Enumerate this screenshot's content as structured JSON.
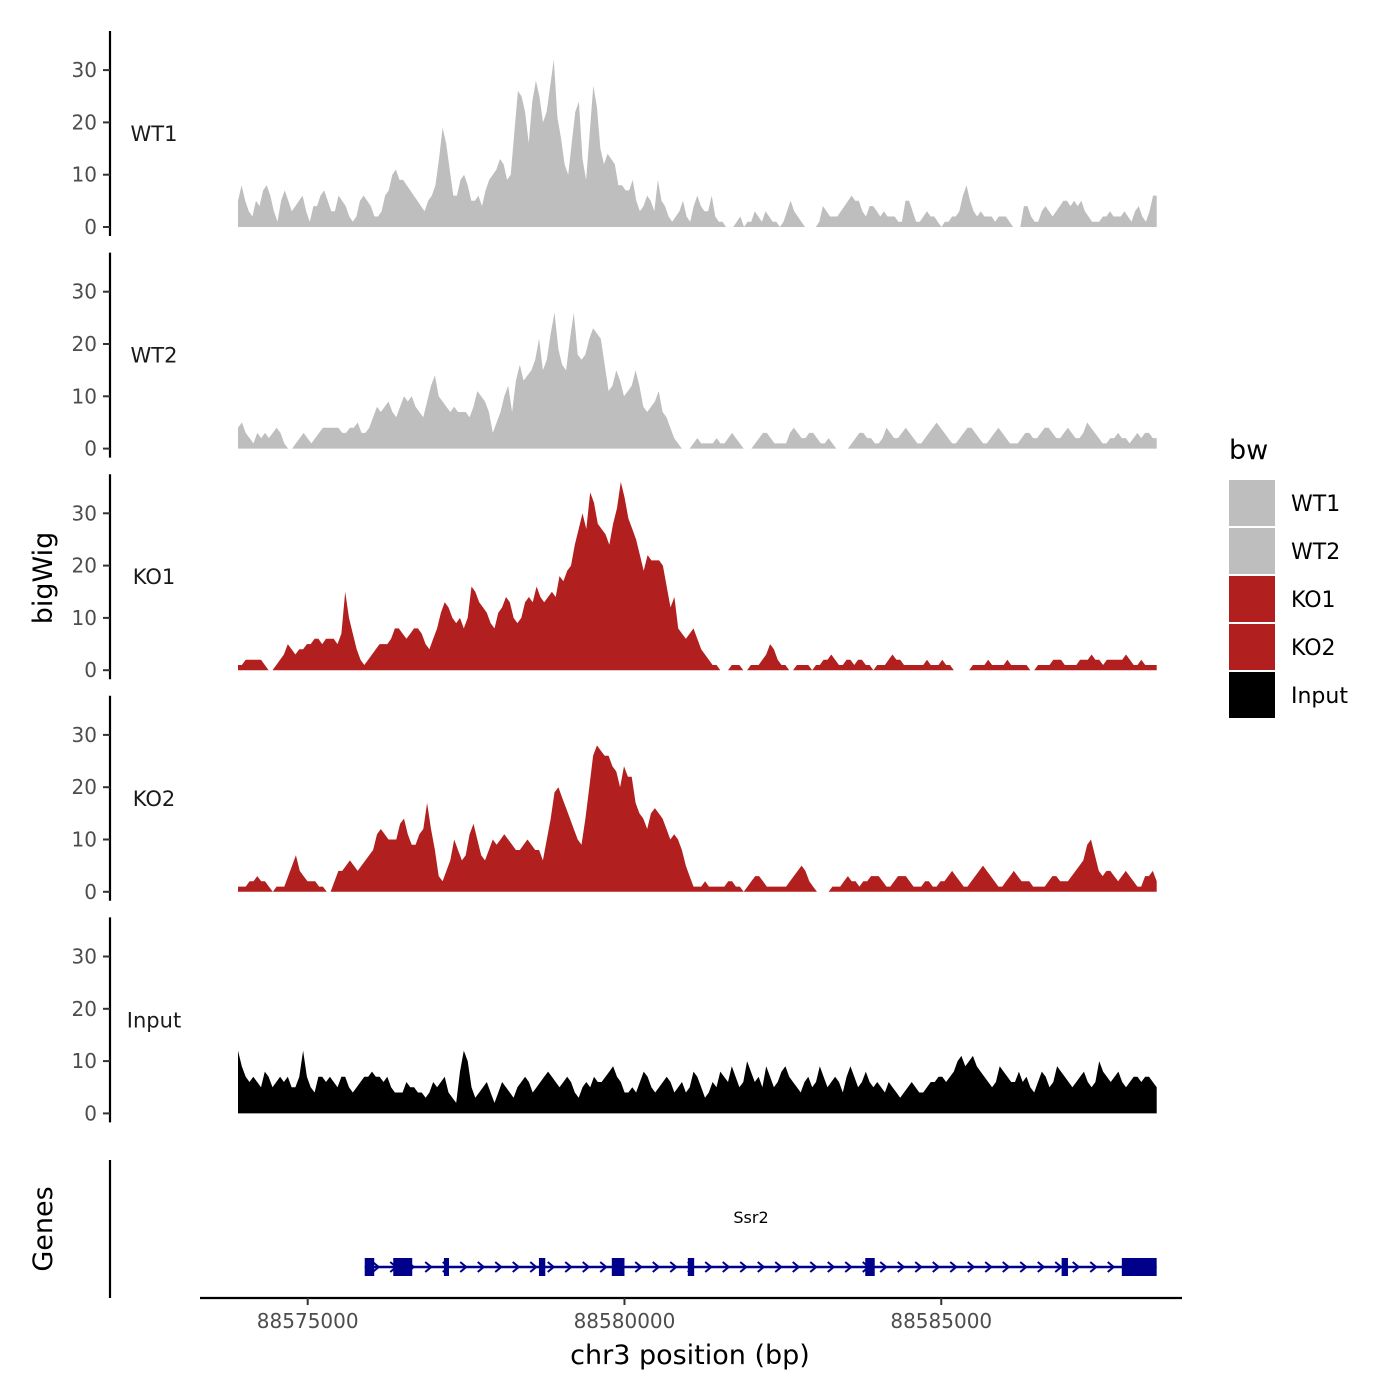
{
  "chart_data": {
    "type": "area",
    "ylabel": "bigWig",
    "xlabel": "chr3 position (bp)",
    "xlim": [
      88573300,
      88588800
    ],
    "ylim": [
      0,
      38
    ],
    "data_x_range": [
      88573900,
      88588400
    ],
    "yticks": [
      0,
      10,
      20,
      30
    ],
    "xticks": [
      {
        "value": 88575000,
        "label": "88575000"
      },
      {
        "value": 88580000,
        "label": "88580000"
      },
      {
        "value": 88585000,
        "label": "88585000"
      }
    ],
    "colors": {
      "WT": "#bebebe",
      "KO": "#b21f1f",
      "Input": "#000000",
      "gene": "#00008b"
    },
    "series": [
      {
        "name": "WT1",
        "color": "#bebebe",
        "values": [
          5,
          8,
          5,
          3,
          2,
          5,
          4,
          7,
          8,
          6,
          3,
          1,
          5,
          7,
          5,
          3,
          4,
          5,
          6,
          3,
          1,
          4,
          4,
          6,
          7,
          5,
          3,
          3,
          6,
          5,
          4,
          2,
          1,
          2,
          5,
          6,
          5,
          4,
          2,
          2,
          3,
          6,
          7,
          10,
          11,
          9,
          9,
          8,
          7,
          6,
          5,
          4,
          3,
          5,
          6,
          8,
          13,
          19,
          16,
          11,
          6,
          6,
          9,
          10,
          8,
          5,
          5,
          6,
          4,
          7,
          9,
          10,
          11,
          13,
          12,
          9,
          10,
          18,
          26,
          25,
          22,
          16,
          24,
          28,
          25,
          20,
          22,
          27,
          32,
          21,
          17,
          12,
          10,
          16,
          22,
          24,
          13,
          9,
          18,
          27,
          23,
          15,
          12,
          14,
          13,
          12,
          8,
          8,
          7,
          7,
          9,
          5,
          3,
          4,
          6,
          5,
          3,
          9,
          5,
          4,
          2,
          1,
          2,
          3,
          5,
          2,
          1,
          4,
          6,
          4,
          3,
          3,
          6,
          2,
          1,
          1,
          0,
          0,
          0,
          1,
          2,
          0,
          1,
          1,
          3,
          2,
          1,
          3,
          2,
          1,
          1,
          0,
          1,
          3,
          5,
          3,
          2,
          1,
          0,
          0,
          0,
          0,
          1,
          4,
          3,
          2,
          2,
          2,
          3,
          4,
          5,
          6,
          5,
          5,
          3,
          2,
          4,
          4,
          3,
          2,
          3,
          2,
          2,
          2,
          1,
          1,
          5,
          5,
          3,
          1,
          1,
          2,
          3,
          2,
          2,
          1,
          0,
          1,
          1,
          2,
          2,
          3,
          6,
          8,
          5,
          3,
          2,
          3,
          2,
          2,
          2,
          1,
          2,
          2,
          2,
          1,
          0,
          0,
          0,
          4,
          4,
          2,
          1,
          1,
          3,
          4,
          3,
          2,
          3,
          4,
          5,
          5,
          4,
          5,
          4,
          5,
          3,
          2,
          1,
          1,
          1,
          2,
          2,
          3,
          2,
          2,
          2,
          3,
          2,
          1,
          3,
          4,
          2,
          1,
          3,
          6,
          6
        ]
      },
      {
        "name": "WT2",
        "color": "#bebebe",
        "values": [
          4,
          5,
          3,
          2,
          1,
          3,
          2,
          3,
          2,
          3,
          4,
          3,
          1,
          0,
          0,
          1,
          2,
          3,
          2,
          1,
          2,
          3,
          4,
          4,
          4,
          4,
          4,
          3,
          3,
          4,
          4,
          5,
          3,
          3,
          4,
          6,
          8,
          7,
          8,
          9,
          7,
          6,
          8,
          10,
          9,
          10,
          8,
          7,
          6,
          9,
          12,
          14,
          10,
          9,
          8,
          7,
          8,
          7,
          7,
          7,
          6,
          8,
          11,
          10,
          9,
          7,
          3,
          5,
          7,
          10,
          12,
          7,
          13,
          16,
          13,
          14,
          15,
          17,
          21,
          15,
          17,
          22,
          26,
          19,
          16,
          15,
          21,
          26,
          18,
          17,
          18,
          21,
          23,
          22,
          21,
          16,
          11,
          12,
          15,
          13,
          10,
          11,
          12,
          15,
          12,
          8,
          7,
          8,
          9,
          11,
          7,
          6,
          4,
          2,
          1,
          0,
          0,
          0,
          1,
          2,
          1,
          1,
          1,
          1,
          2,
          1,
          1,
          2,
          3,
          2,
          1,
          0,
          0,
          0,
          1,
          2,
          3,
          3,
          2,
          1,
          1,
          1,
          1,
          3,
          4,
          3,
          2,
          2,
          3,
          3,
          2,
          1,
          1,
          2,
          1,
          0,
          0,
          0,
          0,
          1,
          2,
          3,
          3,
          2,
          2,
          1,
          1,
          2,
          4,
          3,
          2,
          2,
          3,
          4,
          3,
          2,
          1,
          1,
          2,
          3,
          4,
          5,
          4,
          3,
          2,
          1,
          1,
          2,
          3,
          4,
          4,
          3,
          2,
          1,
          1,
          2,
          3,
          4,
          3,
          2,
          1,
          1,
          1,
          2,
          3,
          3,
          2,
          2,
          3,
          4,
          4,
          3,
          2,
          2,
          3,
          4,
          3,
          2,
          2,
          3,
          5,
          4,
          3,
          2,
          1,
          1,
          2,
          2,
          3,
          2,
          2,
          1,
          2,
          3,
          2,
          3,
          3,
          2,
          2
        ]
      },
      {
        "name": "KO1",
        "color": "#b21f1f",
        "values": [
          1,
          1,
          2,
          2,
          2,
          2,
          2,
          1,
          0,
          0,
          1,
          2,
          3,
          5,
          4,
          3,
          4,
          4,
          5,
          5,
          6,
          6,
          5,
          6,
          6,
          6,
          5,
          7,
          15,
          10,
          7,
          4,
          2,
          1,
          2,
          3,
          4,
          5,
          5,
          5,
          6,
          8,
          8,
          7,
          6,
          7,
          8,
          8,
          7,
          5,
          4,
          6,
          8,
          11,
          13,
          12,
          10,
          9,
          10,
          8,
          10,
          16,
          15,
          13,
          12,
          11,
          9,
          8,
          11,
          12,
          14,
          13,
          10,
          9,
          10,
          13,
          14,
          13,
          16,
          14,
          13,
          14,
          15,
          14,
          18,
          17,
          19,
          20,
          24,
          27,
          30,
          27,
          34,
          32,
          28,
          27,
          26,
          24,
          28,
          31,
          36,
          33,
          29,
          27,
          25,
          22,
          19,
          22,
          21,
          21,
          21,
          20,
          16,
          12,
          14,
          8,
          7,
          6,
          7,
          8,
          6,
          4,
          3,
          2,
          1,
          1,
          0,
          0,
          0,
          1,
          1,
          1,
          0,
          0,
          1,
          1,
          1,
          2,
          3,
          5,
          4,
          2,
          1,
          1,
          0,
          0,
          1,
          1,
          1,
          1,
          0,
          1,
          1,
          2,
          2,
          3,
          2,
          1,
          1,
          2,
          2,
          1,
          2,
          2,
          1,
          1,
          0,
          1,
          1,
          1,
          2,
          3,
          2,
          2,
          1,
          1,
          1,
          1,
          1,
          1,
          2,
          1,
          1,
          1,
          2,
          1,
          1,
          0,
          0,
          0,
          0,
          0,
          1,
          1,
          1,
          1,
          2,
          1,
          1,
          1,
          1,
          2,
          1,
          1,
          1,
          1,
          1,
          0,
          0,
          1,
          1,
          1,
          1,
          2,
          2,
          2,
          1,
          1,
          1,
          1,
          2,
          2,
          2,
          3,
          2,
          2,
          1,
          2,
          2,
          2,
          2,
          2,
          3,
          2,
          1,
          1,
          2,
          1,
          1,
          1,
          1
        ]
      },
      {
        "name": "KO2",
        "color": "#b21f1f",
        "values": [
          1,
          1,
          1,
          2,
          2,
          3,
          2,
          2,
          1,
          0,
          1,
          1,
          1,
          3,
          5,
          7,
          4,
          3,
          2,
          2,
          2,
          1,
          1,
          0,
          0,
          2,
          4,
          4,
          5,
          6,
          5,
          4,
          5,
          6,
          7,
          8,
          11,
          12,
          11,
          10,
          10,
          10,
          13,
          14,
          11,
          9,
          9,
          11,
          12,
          17,
          12,
          8,
          3,
          2,
          4,
          6,
          10,
          8,
          6,
          7,
          11,
          13,
          10,
          7,
          6,
          8,
          10,
          9,
          10,
          11,
          10,
          9,
          8,
          8,
          9,
          10,
          9,
          8,
          8,
          6,
          10,
          14,
          19,
          20,
          18,
          16,
          14,
          12,
          10,
          9,
          14,
          20,
          26,
          28,
          27,
          26,
          26,
          24,
          23,
          20,
          24,
          22,
          22,
          17,
          15,
          14,
          12,
          15,
          16,
          15,
          14,
          12,
          10,
          11,
          10,
          8,
          5,
          3,
          1,
          1,
          1,
          2,
          1,
          1,
          1,
          1,
          1,
          2,
          2,
          1,
          1,
          0,
          1,
          2,
          3,
          3,
          2,
          1,
          1,
          1,
          1,
          1,
          1,
          2,
          3,
          4,
          5,
          4,
          2,
          1,
          0,
          0,
          0,
          0,
          1,
          1,
          1,
          2,
          3,
          2,
          2,
          1,
          2,
          2,
          3,
          3,
          3,
          2,
          1,
          1,
          2,
          3,
          3,
          3,
          2,
          1,
          1,
          1,
          2,
          2,
          1,
          1,
          2,
          2,
          3,
          4,
          3,
          2,
          1,
          1,
          2,
          3,
          4,
          5,
          4,
          3,
          2,
          1,
          1,
          2,
          3,
          4,
          3,
          2,
          2,
          2,
          1,
          1,
          1,
          1,
          2,
          3,
          3,
          2,
          2,
          2,
          3,
          4,
          5,
          6,
          9,
          10,
          7,
          4,
          3,
          4,
          4,
          3,
          2,
          3,
          4,
          3,
          2,
          1,
          1,
          3,
          3,
          4,
          2
        ]
      },
      {
        "name": "Input",
        "color": "#000000",
        "values": [
          12,
          9,
          7,
          6,
          7,
          6,
          5,
          8,
          7,
          5,
          6,
          7,
          6,
          7,
          5,
          5,
          7,
          12,
          7,
          5,
          4,
          7,
          7,
          6,
          7,
          6,
          5,
          7,
          7,
          5,
          4,
          5,
          6,
          7,
          7,
          8,
          7,
          7,
          6,
          7,
          5,
          4,
          4,
          4,
          6,
          5,
          5,
          4,
          4,
          3,
          4,
          6,
          5,
          6,
          7,
          4,
          3,
          2,
          8,
          12,
          10,
          5,
          3,
          4,
          5,
          6,
          4,
          2,
          4,
          6,
          5,
          4,
          3,
          5,
          6,
          7,
          6,
          4,
          5,
          6,
          7,
          8,
          7,
          6,
          5,
          6,
          7,
          6,
          4,
          3,
          5,
          6,
          5,
          7,
          6,
          6,
          7,
          8,
          9,
          7,
          6,
          4,
          4,
          5,
          4,
          6,
          8,
          7,
          5,
          4,
          5,
          6,
          7,
          6,
          4,
          5,
          6,
          4,
          5,
          8,
          7,
          5,
          3,
          4,
          6,
          5,
          8,
          7,
          6,
          9,
          7,
          5,
          6,
          10,
          8,
          6,
          7,
          5,
          9,
          7,
          5,
          6,
          8,
          9,
          7,
          6,
          5,
          4,
          6,
          7,
          5,
          6,
          9,
          7,
          5,
          6,
          7,
          6,
          4,
          7,
          9,
          7,
          5,
          6,
          8,
          6,
          5,
          6,
          5,
          4,
          6,
          5,
          4,
          3,
          4,
          5,
          6,
          5,
          4,
          4,
          5,
          6,
          6,
          7,
          7,
          6,
          7,
          8,
          10,
          11,
          9,
          10,
          11,
          9,
          8,
          7,
          6,
          5,
          6,
          9,
          8,
          7,
          6,
          6,
          8,
          6,
          7,
          5,
          4,
          6,
          8,
          7,
          5,
          6,
          9,
          8,
          7,
          6,
          5,
          6,
          7,
          8,
          6,
          5,
          6,
          10,
          8,
          7,
          6,
          7,
          8,
          6,
          5,
          6,
          7,
          7,
          6,
          7,
          7,
          6,
          5
        ]
      }
    ],
    "genes": {
      "name": "Ssr2",
      "strand": "+",
      "start": 88575900,
      "end": 88588400,
      "exons": [
        [
          88575900,
          88576050
        ],
        [
          88576350,
          88576650
        ],
        [
          88577150,
          88577230
        ],
        [
          88578650,
          88578750
        ],
        [
          88579800,
          88580000
        ],
        [
          88581000,
          88581100
        ],
        [
          88583800,
          88583950
        ],
        [
          88586900,
          88587000
        ],
        [
          88587850,
          88588400
        ]
      ]
    },
    "legend": {
      "title": "bw",
      "position": "right",
      "items": [
        {
          "label": "WT1",
          "color": "#bebebe"
        },
        {
          "label": "WT2",
          "color": "#bebebe"
        },
        {
          "label": "KO1",
          "color": "#b21f1f"
        },
        {
          "label": "KO2",
          "color": "#b21f1f"
        },
        {
          "label": "Input",
          "color": "#000000"
        }
      ]
    },
    "gene_track_label": "Genes"
  }
}
